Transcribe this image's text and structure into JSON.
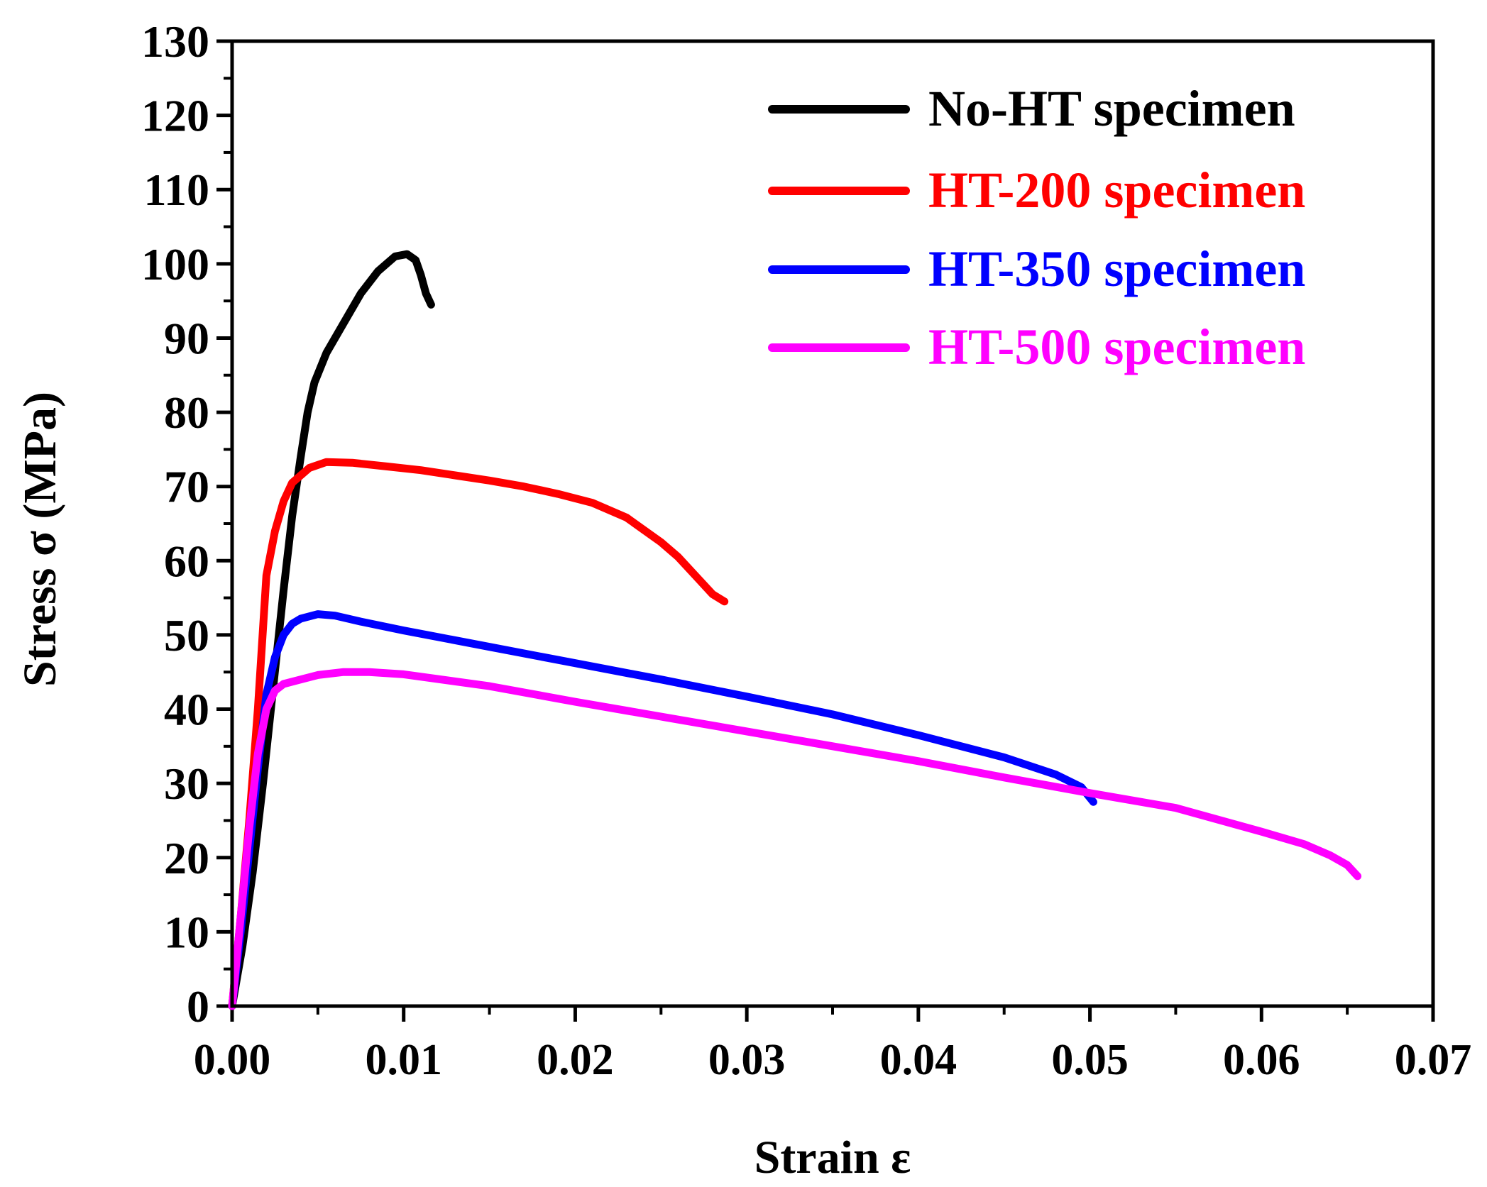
{
  "chart_data": {
    "type": "line",
    "title": "",
    "xlabel": "Strain ε",
    "ylabel": "Stress σ (MPa)",
    "xlim": [
      0,
      0.07
    ],
    "ylim": [
      0,
      130
    ],
    "x_ticks": [
      0.0,
      0.01,
      0.02,
      0.03,
      0.04,
      0.05,
      0.06,
      0.07
    ],
    "x_tick_labels": [
      "0.00",
      "0.01",
      "0.02",
      "0.03",
      "0.04",
      "0.05",
      "0.06",
      "0.07"
    ],
    "y_ticks": [
      0,
      10,
      20,
      30,
      40,
      50,
      60,
      70,
      80,
      90,
      100,
      110,
      120,
      130
    ],
    "y_tick_labels": [
      "0",
      "10",
      "20",
      "30",
      "40",
      "50",
      "60",
      "70",
      "80",
      "90",
      "100",
      "110",
      "120",
      "130"
    ],
    "legend_position": "top-right",
    "series": [
      {
        "name": "No-HT specimen",
        "color": "#000000",
        "points": [
          [
            0,
            0
          ],
          [
            0.0006,
            8
          ],
          [
            0.0012,
            18
          ],
          [
            0.0018,
            30
          ],
          [
            0.0024,
            43
          ],
          [
            0.003,
            56
          ],
          [
            0.0035,
            66
          ],
          [
            0.004,
            74
          ],
          [
            0.0044,
            80
          ],
          [
            0.0048,
            84
          ],
          [
            0.0055,
            88
          ],
          [
            0.0065,
            92
          ],
          [
            0.0075,
            96
          ],
          [
            0.0085,
            99
          ],
          [
            0.0095,
            101
          ],
          [
            0.0102,
            101.3
          ],
          [
            0.0107,
            100.5
          ],
          [
            0.011,
            98.5
          ],
          [
            0.0113,
            96
          ],
          [
            0.0116,
            94.5
          ]
        ]
      },
      {
        "name": "HT-200 specimen",
        "color": "#ff0000",
        "points": [
          [
            0,
            0
          ],
          [
            0.0005,
            12
          ],
          [
            0.001,
            25
          ],
          [
            0.0015,
            40
          ],
          [
            0.002,
            58
          ],
          [
            0.0025,
            64
          ],
          [
            0.003,
            68
          ],
          [
            0.0035,
            70.5
          ],
          [
            0.0045,
            72.5
          ],
          [
            0.0055,
            73.3
          ],
          [
            0.007,
            73.2
          ],
          [
            0.009,
            72.7
          ],
          [
            0.011,
            72.2
          ],
          [
            0.013,
            71.5
          ],
          [
            0.015,
            70.8
          ],
          [
            0.017,
            70
          ],
          [
            0.019,
            69
          ],
          [
            0.021,
            67.8
          ],
          [
            0.023,
            65.8
          ],
          [
            0.025,
            62.5
          ],
          [
            0.026,
            60.5
          ],
          [
            0.027,
            58
          ],
          [
            0.028,
            55.5
          ],
          [
            0.0287,
            54.5
          ]
        ]
      },
      {
        "name": "HT-350 specimen",
        "color": "#0000ff",
        "points": [
          [
            0,
            0
          ],
          [
            0.0005,
            10
          ],
          [
            0.001,
            21
          ],
          [
            0.0015,
            32
          ],
          [
            0.002,
            42
          ],
          [
            0.0025,
            47
          ],
          [
            0.003,
            50
          ],
          [
            0.0035,
            51.5
          ],
          [
            0.004,
            52.2
          ],
          [
            0.005,
            52.8
          ],
          [
            0.006,
            52.6
          ],
          [
            0.0075,
            51.8
          ],
          [
            0.01,
            50.6
          ],
          [
            0.015,
            48.4
          ],
          [
            0.02,
            46.2
          ],
          [
            0.025,
            44
          ],
          [
            0.03,
            41.7
          ],
          [
            0.035,
            39.3
          ],
          [
            0.04,
            36.5
          ],
          [
            0.045,
            33.5
          ],
          [
            0.048,
            31.2
          ],
          [
            0.0495,
            29.5
          ],
          [
            0.0502,
            27.5
          ]
        ]
      },
      {
        "name": "HT-500 specimen",
        "color": "#ff00ff",
        "points": [
          [
            0,
            0
          ],
          [
            0.0005,
            12
          ],
          [
            0.001,
            24
          ],
          [
            0.0015,
            34
          ],
          [
            0.002,
            40
          ],
          [
            0.0025,
            42.5
          ],
          [
            0.003,
            43.4
          ],
          [
            0.004,
            44
          ],
          [
            0.005,
            44.6
          ],
          [
            0.0065,
            45
          ],
          [
            0.008,
            45
          ],
          [
            0.01,
            44.7
          ],
          [
            0.015,
            43.1
          ],
          [
            0.02,
            41
          ],
          [
            0.025,
            39
          ],
          [
            0.03,
            37
          ],
          [
            0.035,
            35
          ],
          [
            0.04,
            33
          ],
          [
            0.045,
            30.8
          ],
          [
            0.05,
            28.7
          ],
          [
            0.055,
            26.7
          ],
          [
            0.06,
            23.5
          ],
          [
            0.0625,
            21.8
          ],
          [
            0.064,
            20.3
          ],
          [
            0.065,
            19
          ],
          [
            0.0656,
            17.5
          ]
        ]
      }
    ]
  }
}
